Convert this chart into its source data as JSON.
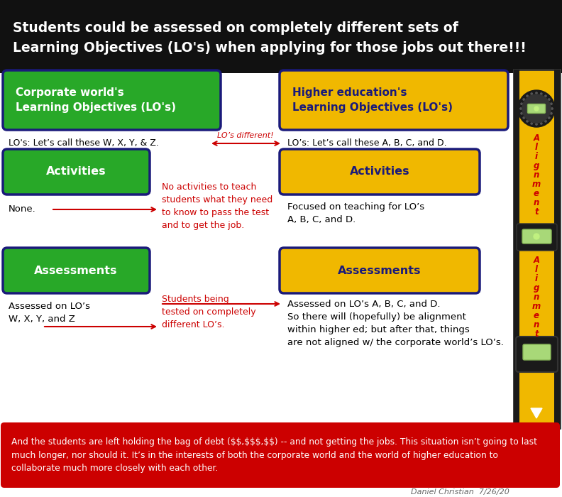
{
  "title_line1": "Students could be assessed on completely different sets of",
  "title_line2": "Learning Objectives (LO's) when applying for those jobs out there!!!",
  "title_bg": "#111111",
  "title_color": "#ffffff",
  "body_bg": "#ffffff",
  "green_color": "#28a828",
  "gold_color": "#f0b800",
  "dark_blue": "#1a1a7a",
  "red_color": "#cc0000",
  "red_bg": "#cc0000",
  "left_header": "Corporate world's\nLearning Objectives (LO's)",
  "right_header": "Higher education's\nLearning Objectives (LO's)",
  "left_lo": "LO's: Let’s call these W, X, Y, & Z.",
  "right_lo": "LO’s: Let’s call these A, B, C, and D.",
  "middle_lo_label": "LO’s different!",
  "left_act_label": "Activities",
  "right_act_label": "Activities",
  "left_act_text": "None.",
  "right_act_text": "Focused on teaching for LO’s\nA, B, C, and D.",
  "mid_act_text": "No activities to teach\nstudents what they need\nto know to pass the test\nand to get the job.",
  "left_ass_label": "Assessments",
  "right_ass_label": "Assessments",
  "left_ass_text": "Assessed on LO’s\nW, X, Y, and Z",
  "right_ass_text": "Assessed on LO’s A, B, C, and D.\nSo there will (hopefully) be alignment\nwithin higher ed; but after that, things\nare not aligned w/ the corporate world’s LO’s.",
  "mid_ass_text": "Students being\ntested on completely\ndifferent LO’s.",
  "footer_text": "And the students are left holding the bag of debt ($$,$$$,$$) -- and not getting the jobs. This situation isn’t going to last\nmuch longer, nor should it. It’s in the interests of both the corporate world and the world of higher education to\ncollaborate much more closely with each other.",
  "credit": "Daniel Christian  7/26/20",
  "align_text": "Alignment"
}
